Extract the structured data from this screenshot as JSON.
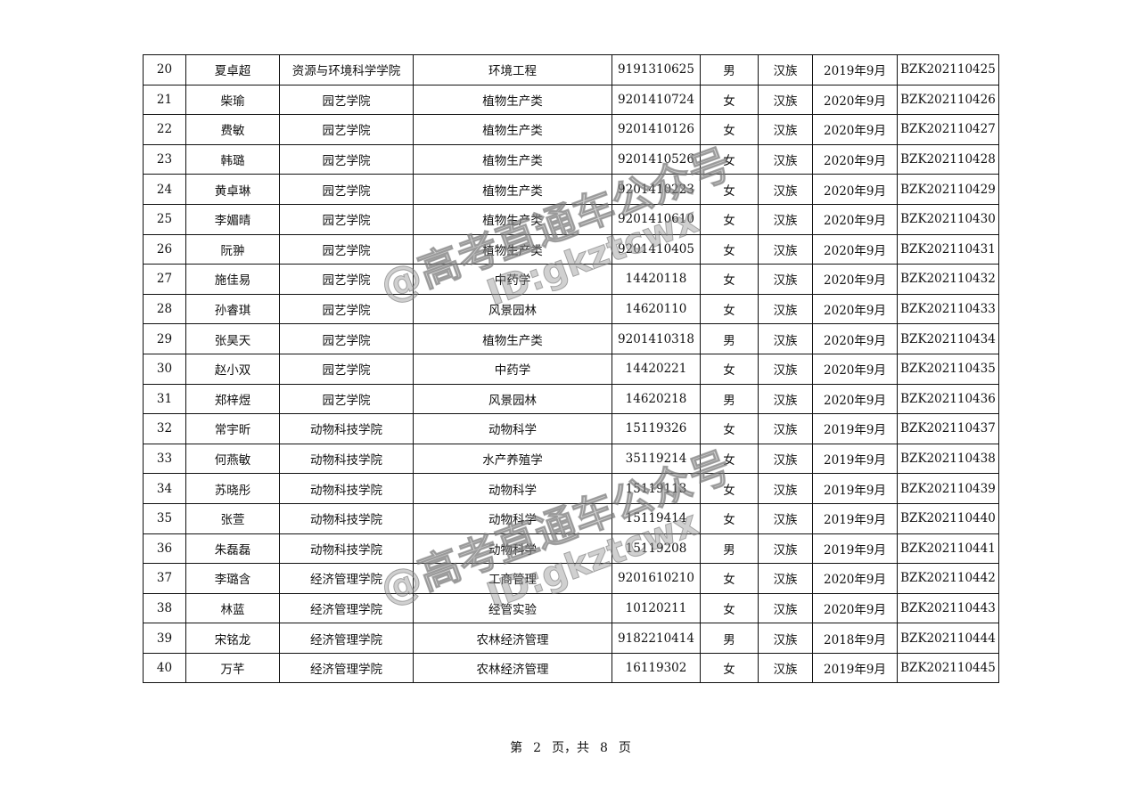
{
  "table": {
    "rows": [
      [
        "20",
        "夏卓超",
        "资源与环境科学学院",
        "环境工程",
        "9191310625",
        "男",
        "汉族",
        "2019年9月",
        "BZK202110425"
      ],
      [
        "21",
        "柴瑜",
        "园艺学院",
        "植物生产类",
        "9201410724",
        "女",
        "汉族",
        "2020年9月",
        "BZK202110426"
      ],
      [
        "22",
        "费敏",
        "园艺学院",
        "植物生产类",
        "9201410126",
        "女",
        "汉族",
        "2020年9月",
        "BZK202110427"
      ],
      [
        "23",
        "韩璐",
        "园艺学院",
        "植物生产类",
        "9201410526",
        "女",
        "汉族",
        "2020年9月",
        "BZK202110428"
      ],
      [
        "24",
        "黄卓琳",
        "园艺学院",
        "植物生产类",
        "9201410223",
        "女",
        "汉族",
        "2020年9月",
        "BZK202110429"
      ],
      [
        "25",
        "李媚晴",
        "园艺学院",
        "植物生产类",
        "9201410610",
        "女",
        "汉族",
        "2020年9月",
        "BZK202110430"
      ],
      [
        "26",
        "阮翀",
        "园艺学院",
        "植物生产类",
        "9201410405",
        "女",
        "汉族",
        "2020年9月",
        "BZK202110431"
      ],
      [
        "27",
        "施佳易",
        "园艺学院",
        "中药学",
        "14420118",
        "女",
        "汉族",
        "2020年9月",
        "BZK202110432"
      ],
      [
        "28",
        "孙睿琪",
        "园艺学院",
        "风景园林",
        "14620110",
        "女",
        "汉族",
        "2020年9月",
        "BZK202110433"
      ],
      [
        "29",
        "张昊天",
        "园艺学院",
        "植物生产类",
        "9201410318",
        "男",
        "汉族",
        "2020年9月",
        "BZK202110434"
      ],
      [
        "30",
        "赵小双",
        "园艺学院",
        "中药学",
        "14420221",
        "女",
        "汉族",
        "2020年9月",
        "BZK202110435"
      ],
      [
        "31",
        "郑梓煜",
        "园艺学院",
        "风景园林",
        "14620218",
        "男",
        "汉族",
        "2020年9月",
        "BZK202110436"
      ],
      [
        "32",
        "常宇昕",
        "动物科技学院",
        "动物科学",
        "15119326",
        "女",
        "汉族",
        "2019年9月",
        "BZK202110437"
      ],
      [
        "33",
        "何燕敏",
        "动物科技学院",
        "水产养殖学",
        "35119214",
        "女",
        "汉族",
        "2019年9月",
        "BZK202110438"
      ],
      [
        "34",
        "苏晓彤",
        "动物科技学院",
        "动物科学",
        "15119113",
        "女",
        "汉族",
        "2019年9月",
        "BZK202110439"
      ],
      [
        "35",
        "张萱",
        "动物科技学院",
        "动物科学",
        "15119414",
        "女",
        "汉族",
        "2019年9月",
        "BZK202110440"
      ],
      [
        "36",
        "朱磊磊",
        "动物科技学院",
        "动物科学",
        "15119208",
        "男",
        "汉族",
        "2019年9月",
        "BZK202110441"
      ],
      [
        "37",
        "李璐含",
        "经济管理学院",
        "工商管理",
        "9201610210",
        "女",
        "汉族",
        "2020年9月",
        "BZK202110442"
      ],
      [
        "38",
        "林蓝",
        "经济管理学院",
        "经管实验",
        "10120211",
        "女",
        "汉族",
        "2020年9月",
        "BZK202110443"
      ],
      [
        "39",
        "宋铭龙",
        "经济管理学院",
        "农林经济管理",
        "9182210414",
        "男",
        "汉族",
        "2018年9月",
        "BZK202110444"
      ],
      [
        "40",
        "万芊",
        "经济管理学院",
        "农林经济管理",
        "16119302",
        "女",
        "汉族",
        "2019年9月",
        "BZK202110445"
      ]
    ]
  },
  "footer": {
    "page_prefix": "第",
    "page": "2",
    "page_mid": "页，共",
    "total": "8",
    "page_suffix": "页"
  },
  "watermark": {
    "line1": "@高考直通车公众号",
    "line2": "ID:gkztcwx"
  }
}
